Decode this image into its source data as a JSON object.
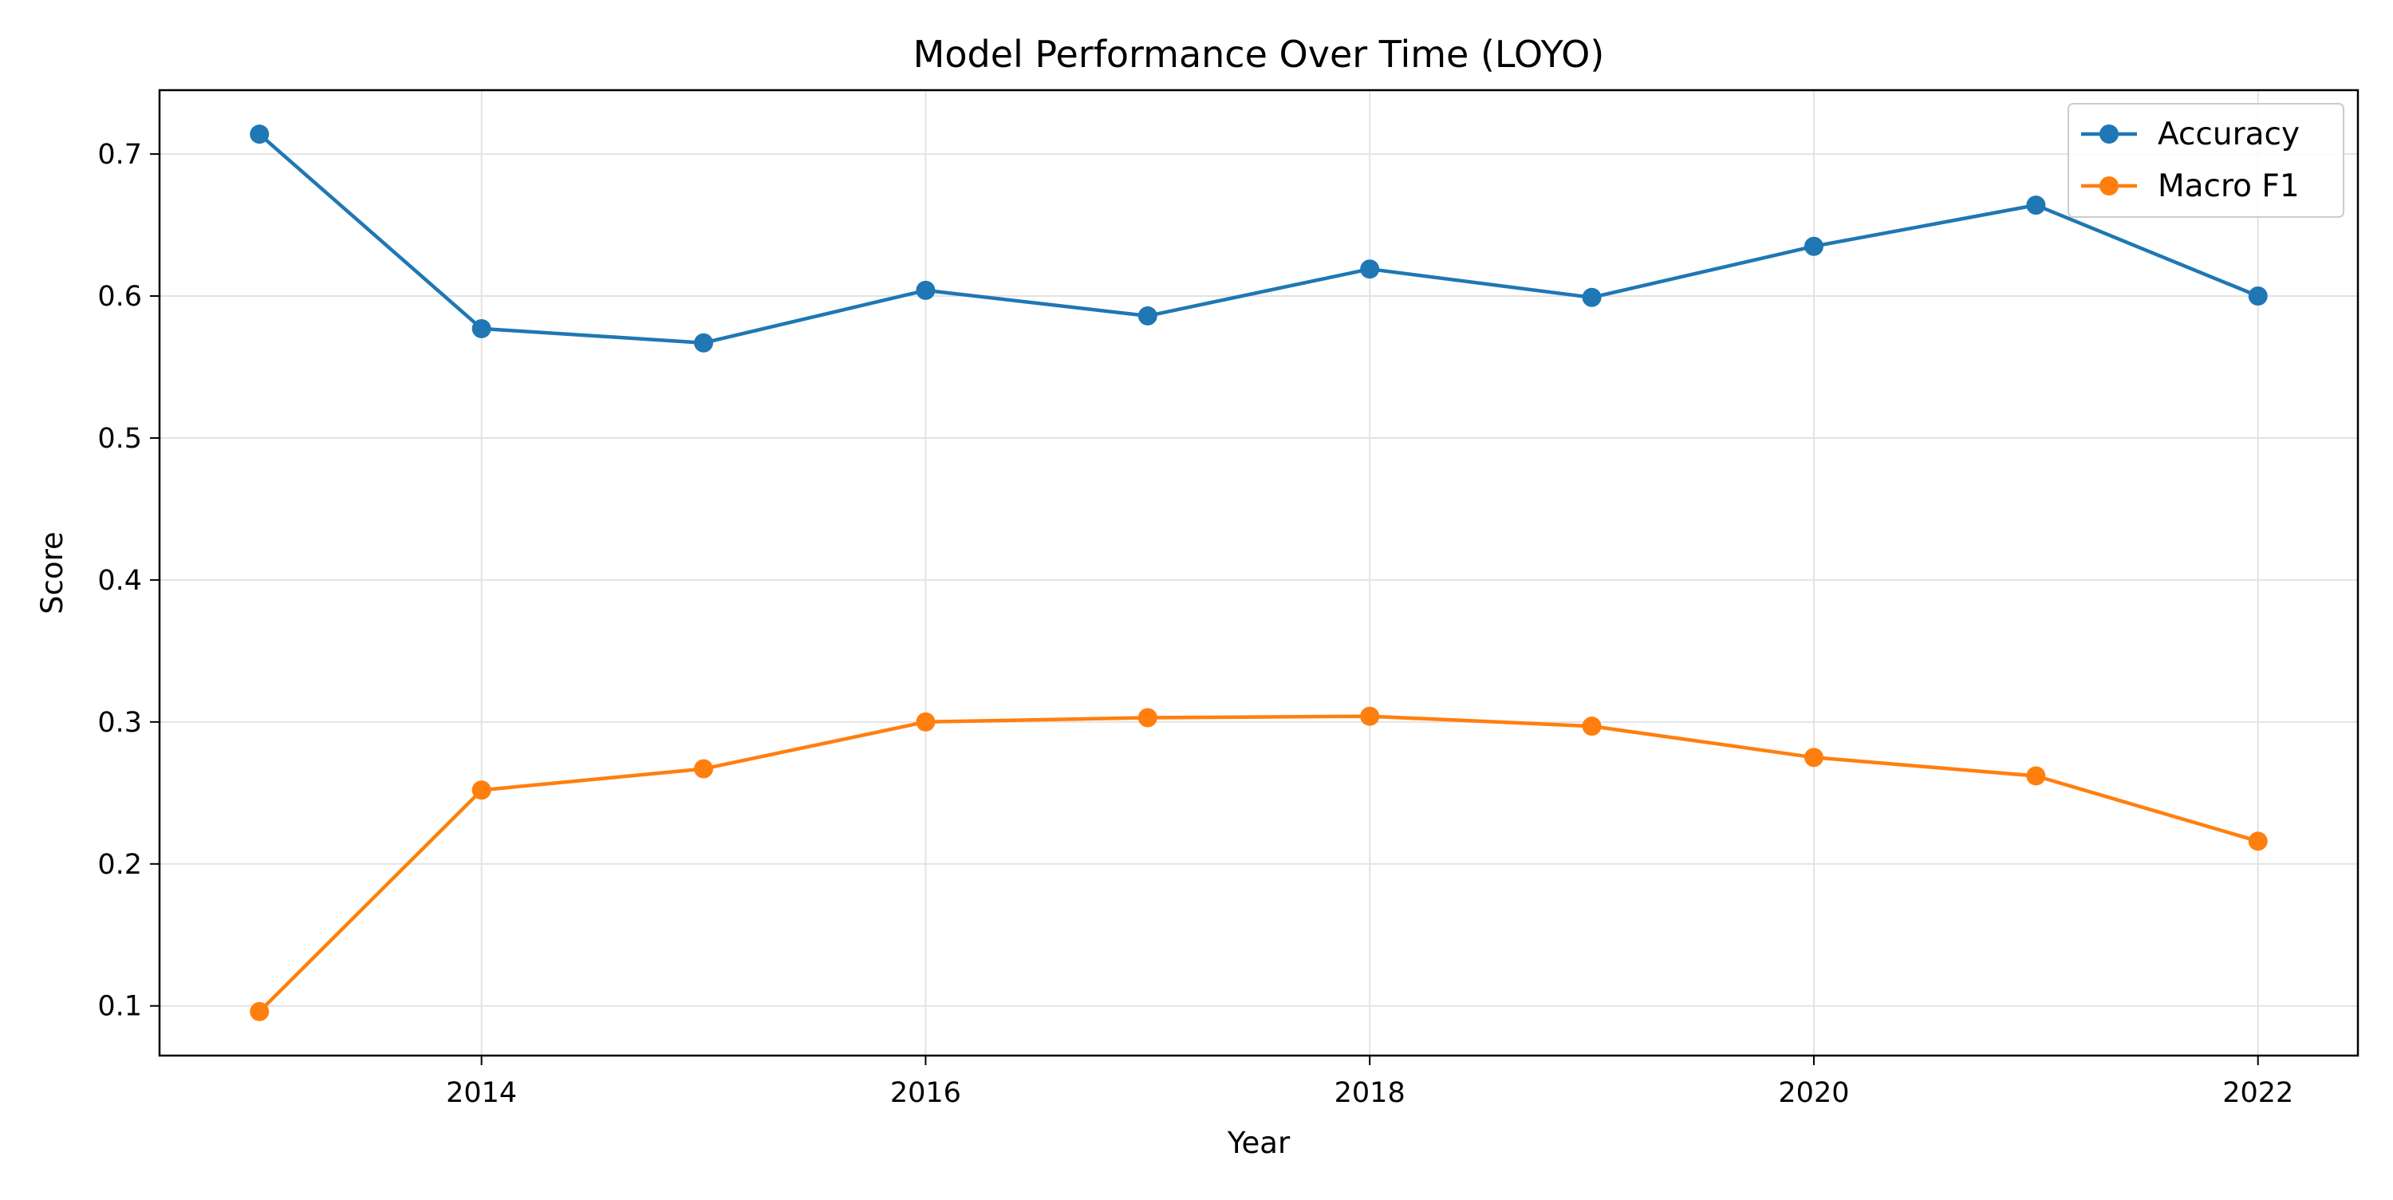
{
  "chart_data": {
    "type": "line",
    "title": "Model Performance Over Time (LOYO)",
    "xlabel": "Year",
    "ylabel": "Score",
    "x": [
      2013,
      2014,
      2015,
      2016,
      2017,
      2018,
      2019,
      2020,
      2021,
      2022
    ],
    "xlim": [
      2012.55,
      2022.45
    ],
    "ylim": [
      0.065,
      0.745
    ],
    "x_ticks": [
      2014,
      2016,
      2018,
      2020,
      2022
    ],
    "y_ticks": [
      0.1,
      0.2,
      0.3,
      0.4,
      0.5,
      0.6,
      0.7
    ],
    "x_tick_labels": [
      "2014",
      "2016",
      "2018",
      "2020",
      "2022"
    ],
    "y_tick_labels": [
      "0.1",
      "0.2",
      "0.3",
      "0.4",
      "0.5",
      "0.6",
      "0.7"
    ],
    "grid": true,
    "legend_position": "top-right",
    "series": [
      {
        "name": "Accuracy",
        "color": "#1f77b4",
        "marker": "circle",
        "values": [
          0.714,
          0.577,
          0.567,
          0.604,
          0.586,
          0.619,
          0.599,
          0.635,
          0.664,
          0.6
        ]
      },
      {
        "name": "Macro F1",
        "color": "#ff7f0e",
        "marker": "circle",
        "values": [
          0.096,
          0.252,
          0.267,
          0.3,
          0.303,
          0.304,
          0.297,
          0.275,
          0.262,
          0.216
        ]
      }
    ]
  }
}
